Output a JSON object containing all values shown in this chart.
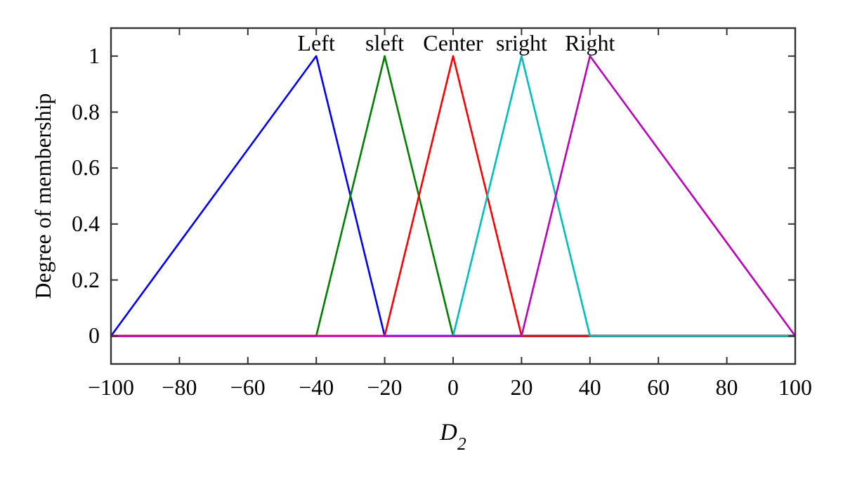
{
  "chart_data": {
    "type": "line",
    "xlabel": "D$_{2}$",
    "ylabel": "Degree of membership",
    "xlim": [
      -100,
      100
    ],
    "xticks": [
      -100,
      -80,
      -60,
      -40,
      -20,
      0,
      20,
      40,
      60,
      80,
      100
    ],
    "ylim": [
      -0.1,
      1.1
    ],
    "yticks": [
      0,
      0.2,
      0.4,
      0.6,
      0.8,
      1
    ],
    "grid": false,
    "marker": "none",
    "line_style": "solid",
    "series": [
      {
        "name": "Left",
        "color": "#0000ff",
        "x": [
          -100,
          -40,
          -20,
          100
        ],
        "values": [
          0,
          1,
          0,
          0
        ]
      },
      {
        "name": "sleft",
        "color": "#008000",
        "x": [
          -100,
          -40,
          -20,
          0,
          100
        ],
        "values": [
          0,
          0,
          1,
          0,
          0
        ]
      },
      {
        "name": "Center",
        "color": "#ff0000",
        "x": [
          -100,
          -20,
          0,
          20,
          100
        ],
        "values": [
          0,
          0,
          1,
          0,
          0
        ]
      },
      {
        "name": "sright",
        "color": "#00bfbf",
        "x": [
          0,
          20,
          40,
          100
        ],
        "values": [
          0,
          1,
          0,
          0
        ]
      },
      {
        "name": "Right",
        "color": "#bf00bf",
        "x": [
          -100,
          20,
          40,
          100
        ],
        "values": [
          0,
          0,
          1,
          0
        ]
      }
    ]
  }
}
